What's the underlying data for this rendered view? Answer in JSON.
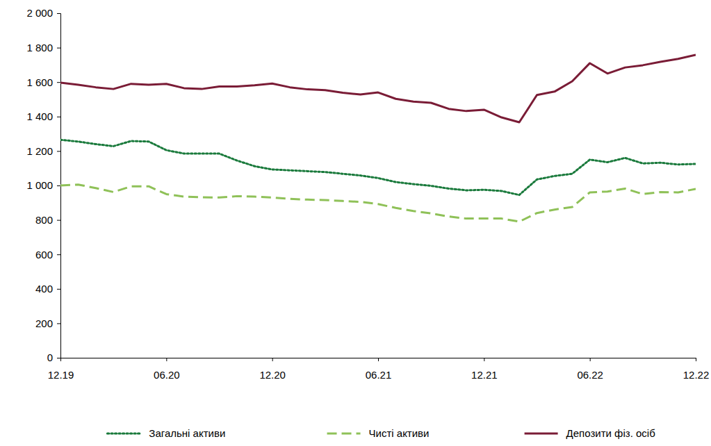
{
  "chart_data": {
    "type": "line",
    "categories": [
      "12.19",
      null,
      null,
      null,
      null,
      null,
      "06.20",
      null,
      null,
      null,
      null,
      null,
      "12.20",
      null,
      null,
      null,
      null,
      null,
      "06.21",
      null,
      null,
      null,
      null,
      null,
      "12.21",
      null,
      null,
      null,
      null,
      null,
      "06.22",
      null,
      null,
      null,
      null,
      null,
      "12.22"
    ],
    "series": [
      {
        "name": "Загальні активи",
        "color": "#1a7a3c",
        "line_style": "dotted",
        "values": [
          1265,
          1255,
          1240,
          1228,
          1258,
          1255,
          1205,
          1185,
          1185,
          1185,
          1145,
          1112,
          1093,
          1088,
          1083,
          1078,
          1068,
          1058,
          1043,
          1020,
          1008,
          998,
          982,
          972,
          975,
          968,
          945,
          1035,
          1055,
          1068,
          1150,
          1135,
          1160,
          1128,
          1132,
          1122,
          1125
        ]
      },
      {
        "name": "Чисті активи",
        "color": "#8fc158",
        "line_style": "dashed",
        "values": [
          1000,
          1005,
          985,
          962,
          995,
          995,
          950,
          935,
          932,
          930,
          938,
          935,
          930,
          922,
          918,
          915,
          910,
          905,
          892,
          870,
          852,
          838,
          820,
          808,
          808,
          808,
          790,
          840,
          860,
          875,
          960,
          965,
          982,
          950,
          962,
          960,
          980
        ]
      },
      {
        "name": "Депозити фіз. осіб",
        "color": "#7a1c36",
        "line_style": "solid",
        "values": [
          1597,
          1585,
          1570,
          1560,
          1590,
          1585,
          1590,
          1565,
          1560,
          1575,
          1575,
          1582,
          1592,
          1570,
          1558,
          1553,
          1538,
          1528,
          1540,
          1503,
          1487,
          1480,
          1445,
          1432,
          1440,
          1395,
          1367,
          1525,
          1545,
          1605,
          1710,
          1650,
          1685,
          1698,
          1718,
          1735,
          1758
        ]
      }
    ],
    "ylim": [
      0,
      2000
    ],
    "yticks": [
      0,
      200,
      400,
      600,
      800,
      {
        "value": 1000,
        "label": "1 000"
      },
      {
        "value": 1200,
        "label": "1 200"
      },
      {
        "value": 1400,
        "label": "1 400"
      },
      {
        "value": 1600,
        "label": "1 600"
      },
      {
        "value": 1800,
        "label": "1 800"
      },
      {
        "value": 2000,
        "label": "2 000"
      }
    ],
    "grid": false,
    "legend": "bottom"
  }
}
